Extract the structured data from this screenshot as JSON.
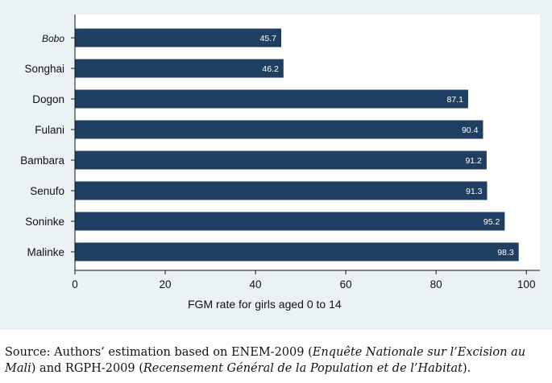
{
  "chart_data": {
    "type": "bar",
    "orientation": "horizontal",
    "categories": [
      "Bobo",
      "Songhai",
      "Dogon",
      "Fulani",
      "Bambara",
      "Senufo",
      "Soninke",
      "Malinke"
    ],
    "values": [
      45.7,
      46.2,
      87.1,
      90.4,
      91.2,
      91.3,
      95.2,
      98.3
    ],
    "value_labels": [
      "45.7",
      "46.2",
      "87.1",
      "90.4",
      "91.2",
      "91.3",
      "95.2",
      "98.3"
    ],
    "xlabel": "FGM rate for girls aged 0 to 14",
    "xticks": [
      0,
      20,
      40,
      60,
      80,
      100
    ],
    "xtick_labels": [
      "0",
      "20",
      "40",
      "60",
      "80",
      "100"
    ],
    "xlim": [
      0,
      103
    ],
    "bar_color": "#1f3f62",
    "label_color": "#ffffff",
    "background_color": "#eaf2f3",
    "plot_background_color": "#ffffff"
  },
  "source": {
    "prefix": "Source: Authors’ estimation based on ENEM-2009 (",
    "italic1": "Enquête Nationale sur l’Excision au Mali",
    "middle": ") and RGPH-2009 (",
    "italic2": "Recensement Général de la Population et de l’Habitat",
    "suffix": ")."
  }
}
